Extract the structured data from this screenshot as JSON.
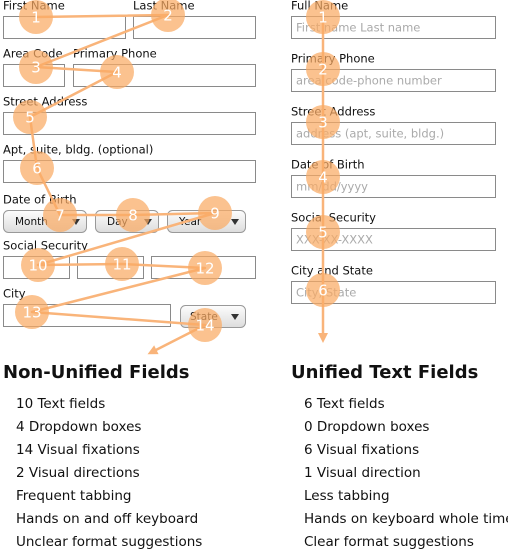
{
  "non_unified": {
    "labels": [
      "First Name",
      "Last Name",
      "Area Code",
      "Primary Phone",
      "Street Address",
      "Apt, suite, bldg. (optional)",
      "Date of Birth",
      "Social Security",
      "City"
    ],
    "dropdowns": [
      "Month",
      "Day",
      "Year",
      "State"
    ],
    "fixations": [
      1,
      2,
      3,
      4,
      5,
      6,
      7,
      8,
      9,
      10,
      11,
      12,
      13,
      14
    ]
  },
  "unified": {
    "fields": [
      {
        "label": "Full Name",
        "placeholder": "First name Last name"
      },
      {
        "label": "Primary Phone",
        "placeholder": "area code-phone number"
      },
      {
        "label": "Street Address",
        "placeholder": "address (apt, suite, bldg.)"
      },
      {
        "label": "Date of Birth",
        "placeholder": "mm/dd/yyyy"
      },
      {
        "label": "Social Security",
        "placeholder": "XXX-XX-XXXX"
      },
      {
        "label": "City and State",
        "placeholder": "City, State"
      }
    ],
    "fixations": [
      1,
      2,
      3,
      4,
      5,
      6
    ]
  },
  "summaries": [
    {
      "title": "Non-Unified Fields",
      "items": [
        "10 Text fields",
        "4 Dropdown boxes",
        "14 Visual fixations",
        "2 Visual directions",
        "Frequent tabbing",
        "Hands on and off keyboard",
        "Unclear format suggestions"
      ]
    },
    {
      "title": "Unified Text Fields",
      "items": [
        "6 Text fields",
        "0 Dropdown boxes",
        "6 Visual fixations",
        "1 Visual direction",
        "Less tabbing",
        "Hands on keyboard whole time",
        "Clear format suggestions"
      ]
    }
  ]
}
